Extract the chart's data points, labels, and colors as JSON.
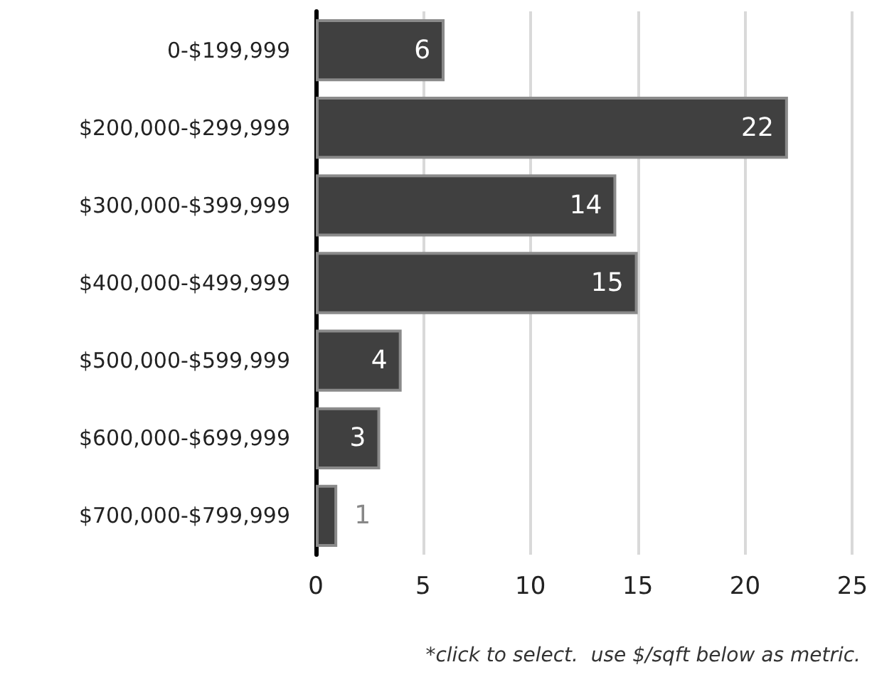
{
  "chart_data": {
    "type": "bar",
    "orientation": "horizontal",
    "categories": [
      "0-$199,999",
      "$200,000-$299,999",
      "$300,000-$399,999",
      "$400,000-$499,999",
      "$500,000-$599,999",
      "$600,000-$699,999",
      "$700,000-$799,999"
    ],
    "values": [
      6,
      22,
      14,
      15,
      4,
      3,
      1
    ],
    "color": "#404040",
    "xlim": [
      0,
      25
    ],
    "xticks": [
      0,
      5,
      10,
      15,
      20,
      25
    ],
    "grid": "x",
    "data_labels": true,
    "annotations": [
      "*click to select.  use $/sqft below as metric."
    ]
  }
}
